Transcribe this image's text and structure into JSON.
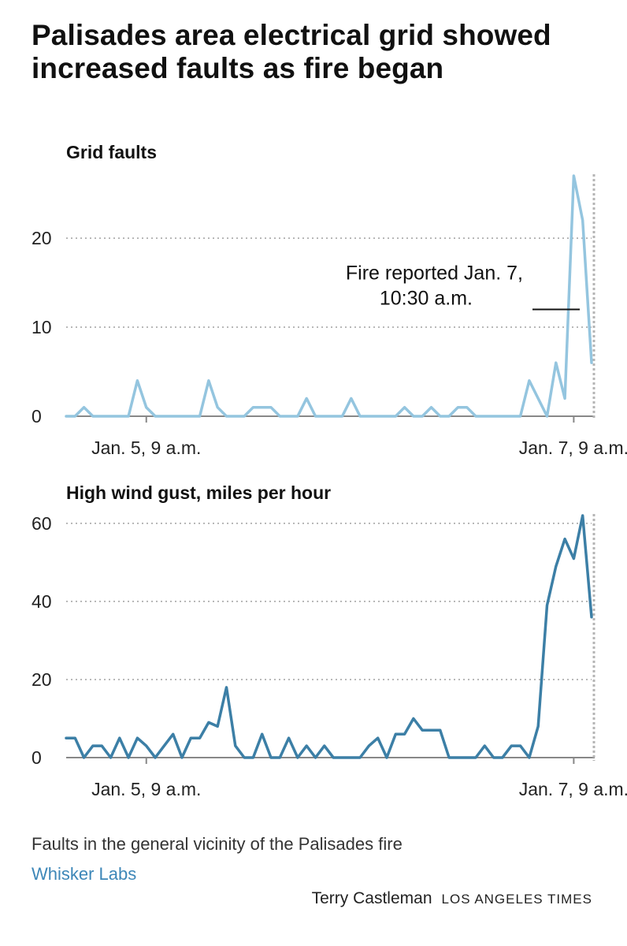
{
  "title": "Palisades area electrical grid showed increased faults as fire began",
  "colors": {
    "faults": "#94c5df",
    "wind": "#3c7fa6",
    "grid": "#a0a0a0",
    "axis": "#888888",
    "source": "#3d87b8"
  },
  "chart_data": [
    {
      "type": "line",
      "title": "Grid faults",
      "xlabel": "",
      "ylabel": "",
      "ylim": [
        0,
        27
      ],
      "yticks": [
        0,
        10,
        20
      ],
      "xticks": [
        {
          "label": "Jan. 5, 9 a.m.",
          "x": 9
        },
        {
          "label": "Jan. 7, 9 a.m.",
          "x": 57
        }
      ],
      "marker_x": 59,
      "annotation": {
        "line1": "Fire reported Jan. 7,",
        "line2": "10:30 a.m.",
        "value": 12
      },
      "series": [
        {
          "name": "Grid faults",
          "color": "#94c5df",
          "x": [
            0,
            1,
            2,
            3,
            4,
            5,
            6,
            7,
            8,
            9,
            10,
            11,
            12,
            13,
            14,
            15,
            16,
            17,
            18,
            19,
            20,
            21,
            22,
            23,
            24,
            25,
            26,
            27,
            28,
            29,
            30,
            31,
            32,
            33,
            34,
            35,
            36,
            37,
            38,
            39,
            40,
            41,
            42,
            43,
            44,
            45,
            46,
            47,
            48,
            49,
            50,
            51,
            52,
            53,
            54,
            55,
            56,
            57,
            58,
            59
          ],
          "values": [
            0,
            0,
            1,
            0,
            0,
            0,
            0,
            0,
            4,
            1,
            0,
            0,
            0,
            0,
            0,
            0,
            4,
            1,
            0,
            0,
            0,
            1,
            1,
            1,
            0,
            0,
            0,
            2,
            0,
            0,
            0,
            0,
            2,
            0,
            0,
            0,
            0,
            0,
            1,
            0,
            0,
            1,
            0,
            0,
            1,
            1,
            0,
            0,
            0,
            0,
            0,
            0,
            4,
            2,
            0,
            6,
            2,
            27,
            22,
            6
          ]
        }
      ]
    },
    {
      "type": "line",
      "title": "High wind gust, miles per hour",
      "xlabel": "",
      "ylabel": "",
      "ylim": [
        0,
        62
      ],
      "yticks": [
        0,
        20,
        40,
        60
      ],
      "xticks": [
        {
          "label": "Jan. 5, 9 a.m.",
          "x": 9
        },
        {
          "label": "Jan. 7, 9 a.m.",
          "x": 57
        }
      ],
      "marker_x": 59,
      "series": [
        {
          "name": "High wind gust",
          "color": "#3c7fa6",
          "x": [
            0,
            1,
            2,
            3,
            4,
            5,
            6,
            7,
            8,
            9,
            10,
            11,
            12,
            13,
            14,
            15,
            16,
            17,
            18,
            19,
            20,
            21,
            22,
            23,
            24,
            25,
            26,
            27,
            28,
            29,
            30,
            31,
            32,
            33,
            34,
            35,
            36,
            37,
            38,
            39,
            40,
            41,
            42,
            43,
            44,
            45,
            46,
            47,
            48,
            49,
            50,
            51,
            52,
            53,
            54,
            55,
            56,
            57,
            58,
            59
          ],
          "values": [
            5,
            5,
            0,
            3,
            3,
            0,
            5,
            0,
            5,
            3,
            0,
            3,
            6,
            0,
            5,
            5,
            9,
            8,
            18,
            3,
            0,
            0,
            6,
            0,
            0,
            5,
            0,
            3,
            0,
            3,
            0,
            0,
            0,
            0,
            3,
            5,
            0,
            6,
            6,
            10,
            7,
            7,
            7,
            0,
            0,
            0,
            0,
            3,
            0,
            0,
            3,
            3,
            0,
            8,
            39,
            49,
            56,
            51,
            62,
            36
          ]
        }
      ]
    }
  ],
  "footer": {
    "note": "Faults in the general vicinity of the Palisades fire",
    "source": "Whisker Labs",
    "author": "Terry Castleman",
    "brand": "LOS ANGELES TIMES"
  }
}
